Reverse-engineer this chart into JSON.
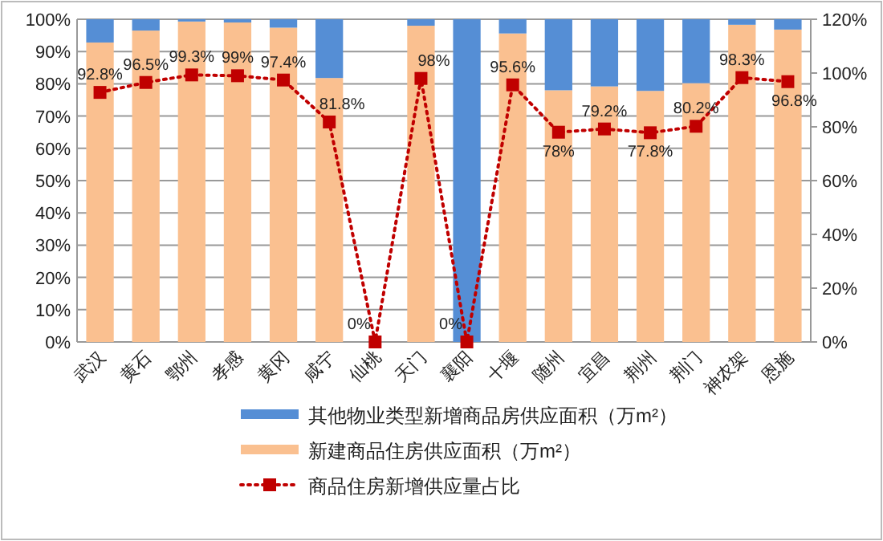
{
  "chart_data": {
    "type": "bar",
    "stacked": true,
    "categories": [
      "武汉",
      "黄石",
      "鄂州",
      "孝感",
      "黄冈",
      "咸宁",
      "仙桃",
      "天门",
      "襄阳",
      "十堰",
      "随州",
      "宜昌",
      "荆州",
      "荆门",
      "神农架",
      "恩施"
    ],
    "series": [
      {
        "name": "新建商品住房供应面积（万m²）",
        "color": "#fac090",
        "values": [
          92.8,
          96.5,
          99.3,
          99,
          97.4,
          81.8,
          0,
          98,
          0,
          95.6,
          78,
          79.2,
          77.8,
          80.2,
          98.3,
          96.8
        ]
      },
      {
        "name": "其他物业类型新增商品房供应面积（万m²）",
        "color": "#558ed5",
        "values": [
          7.2,
          3.5,
          0.7,
          1,
          2.6,
          18.2,
          0,
          2,
          100,
          4.4,
          22,
          20.8,
          22.2,
          19.8,
          1.7,
          3.2
        ]
      },
      {
        "name": "商品住房新增供应量占比",
        "type": "line",
        "axis": "y2",
        "color": "#c00000",
        "marker": "square",
        "line_style": "dotted",
        "values": [
          92.8,
          96.5,
          99.3,
          99,
          97.4,
          81.8,
          0,
          98,
          0,
          95.6,
          78,
          79.2,
          77.8,
          80.2,
          98.3,
          96.8
        ],
        "value_labels": [
          "92.8%",
          "96.5%",
          "99.3%",
          "99%",
          "97.4%",
          "81.8%",
          "0%",
          "98%",
          "0%",
          "95.6%",
          "78%",
          "79.2%",
          "77.8%",
          "80.2%",
          "98.3%",
          "96.8%"
        ]
      }
    ],
    "ylim": [
      0,
      100
    ],
    "yticks": [
      {
        "value": 0,
        "label": "0%"
      },
      {
        "value": 10,
        "label": "10%"
      },
      {
        "value": 20,
        "label": "20%"
      },
      {
        "value": 30,
        "label": "30%"
      },
      {
        "value": 40,
        "label": "40%"
      },
      {
        "value": 50,
        "label": "50%"
      },
      {
        "value": 60,
        "label": "60%"
      },
      {
        "value": 70,
        "label": "70%"
      },
      {
        "value": 80,
        "label": "80%"
      },
      {
        "value": 90,
        "label": "90%"
      },
      {
        "value": 100,
        "label": "100%"
      }
    ],
    "y2lim": [
      0,
      120
    ],
    "y2ticks": [
      {
        "value": 0,
        "label": "0%"
      },
      {
        "value": 20,
        "label": "20%"
      },
      {
        "value": 40,
        "label": "40%"
      },
      {
        "value": 60,
        "label": "60%"
      },
      {
        "value": 80,
        "label": "80%"
      },
      {
        "value": 100,
        "label": "100%"
      },
      {
        "value": 120,
        "label": "120%"
      }
    ],
    "grid": "y",
    "legend": "bottom"
  }
}
